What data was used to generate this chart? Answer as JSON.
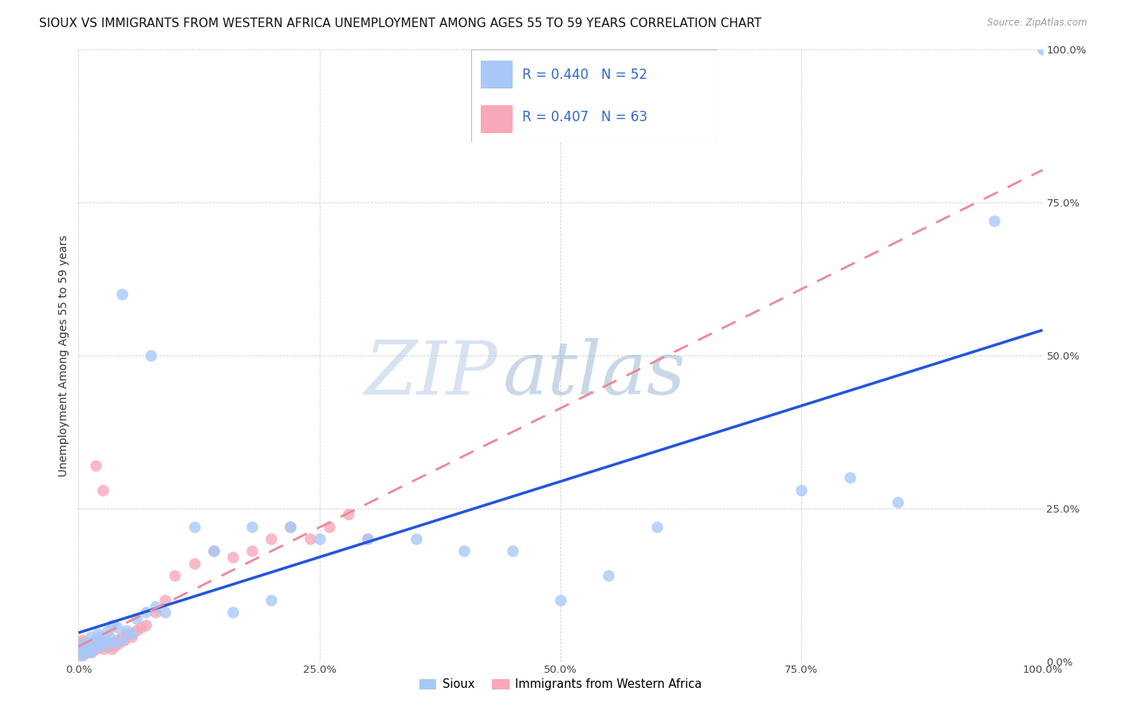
{
  "title": "SIOUX VS IMMIGRANTS FROM WESTERN AFRICA UNEMPLOYMENT AMONG AGES 55 TO 59 YEARS CORRELATION CHART",
  "source": "Source: ZipAtlas.com",
  "ylabel": "Unemployment Among Ages 55 to 59 years",
  "xlim": [
    0,
    1
  ],
  "ylim": [
    0,
    1
  ],
  "xticks": [
    0.0,
    0.25,
    0.5,
    0.75,
    1.0
  ],
  "yticks": [
    0.0,
    0.25,
    0.5,
    0.75,
    1.0
  ],
  "xticklabels": [
    "0.0%",
    "25.0%",
    "50.0%",
    "75.0%",
    "100.0%"
  ],
  "yticklabels_right": [
    "0.0%",
    "25.0%",
    "50.0%",
    "75.0%",
    "100.0%"
  ],
  "legend_labels": [
    "Sioux",
    "Immigrants from Western Africa"
  ],
  "sioux_color": "#A8C8F8",
  "immigrants_color": "#F8A8B8",
  "sioux_line_color": "#2255DD",
  "immigrants_line_color": "#EE8899",
  "R_sioux": 0.44,
  "N_sioux": 52,
  "R_immigrants": 0.407,
  "N_immigrants": 63,
  "background_color": "#FFFFFF",
  "grid_color": "#BBBBBB",
  "title_fontsize": 11,
  "axis_label_fontsize": 10,
  "tick_fontsize": 9.5
}
